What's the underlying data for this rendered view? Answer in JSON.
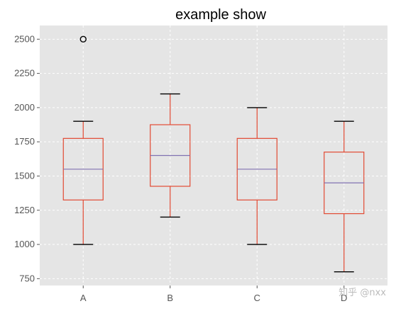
{
  "chart_data": {
    "type": "boxplot",
    "title": "example show",
    "xlabel": "",
    "ylabel": "",
    "categories": [
      "A",
      "B",
      "C",
      "D"
    ],
    "boxes": [
      {
        "name": "A",
        "whisker_low": 1000,
        "q1": 1325,
        "median": 1550,
        "q3": 1775,
        "whisker_high": 1900,
        "outliers": [
          2500
        ]
      },
      {
        "name": "B",
        "whisker_low": 1200,
        "q1": 1425,
        "median": 1650,
        "q3": 1875,
        "whisker_high": 2100,
        "outliers": []
      },
      {
        "name": "C",
        "whisker_low": 1000,
        "q1": 1325,
        "median": 1550,
        "q3": 1775,
        "whisker_high": 2000,
        "outliers": []
      },
      {
        "name": "D",
        "whisker_low": 800,
        "q1": 1225,
        "median": 1450,
        "q3": 1675,
        "whisker_high": 1900,
        "outliers": []
      }
    ],
    "ylim": [
      700,
      2600
    ],
    "yticks": [
      750,
      1000,
      1250,
      1500,
      1750,
      2000,
      2250,
      2500
    ],
    "ytick_labels": [
      "750",
      "1000",
      "1250",
      "1500",
      "1750",
      "2000",
      "2250",
      "2500"
    ],
    "grid": true,
    "colors": {
      "background": "#e5e5e5",
      "grid": "#ffffff",
      "box": "#e24a33",
      "median": "#8172b2",
      "whisker_cap": "#000000"
    }
  },
  "watermark": "知乎 @nxx"
}
